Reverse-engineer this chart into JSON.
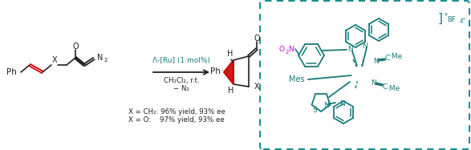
{
  "bg_color": "#ffffff",
  "teal": "#1a7a7a",
  "red": "#cc0000",
  "magenta": "#cc00cc",
  "dark": "#222222",
  "catalyst_text": "Λ-[Ru] (1 mol%)",
  "conditions1": "CH₂Cl₂, r.t.",
  "conditions2": "− N₂",
  "result1": "X = CH₂: 96% yield, 93% ee",
  "result2": "X = O:    97% yield, 93% ee",
  "box_color": "#1a9090",
  "figsize": [
    5.87,
    1.87
  ],
  "dpi": 100
}
